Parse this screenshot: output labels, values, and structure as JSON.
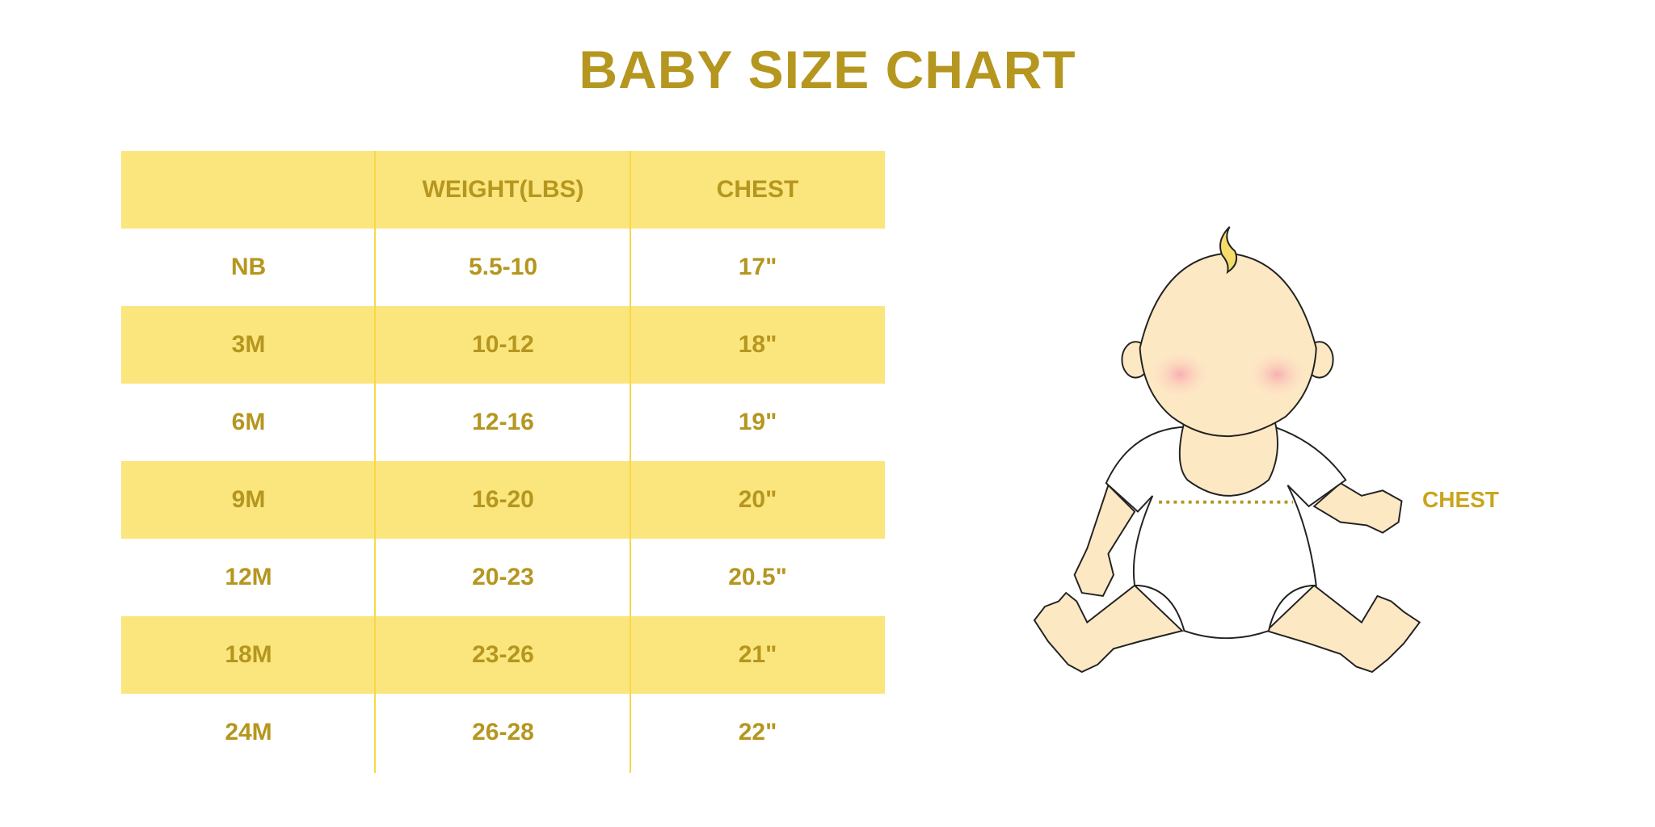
{
  "title": "BABY SIZE CHART",
  "table": {
    "headers": [
      "",
      "WEIGHT(LBS)",
      "CHEST"
    ],
    "rows": [
      [
        "NB",
        "5.5-10",
        "17\""
      ],
      [
        "3M",
        "10-12",
        "18\""
      ],
      [
        "6M",
        "12-16",
        "19\""
      ],
      [
        "9M",
        "16-20",
        "20\""
      ],
      [
        "12M",
        "20-23",
        "20.5\""
      ],
      [
        "18M",
        "23-26",
        "21\""
      ],
      [
        "24M",
        "26-28",
        "22\""
      ]
    ]
  },
  "illustration": {
    "chest_label": "CHEST"
  },
  "colors": {
    "text": "#b5961f",
    "band": "#fbe57d",
    "skin": "#fde8c4",
    "cheek": "#f8b5b8"
  }
}
